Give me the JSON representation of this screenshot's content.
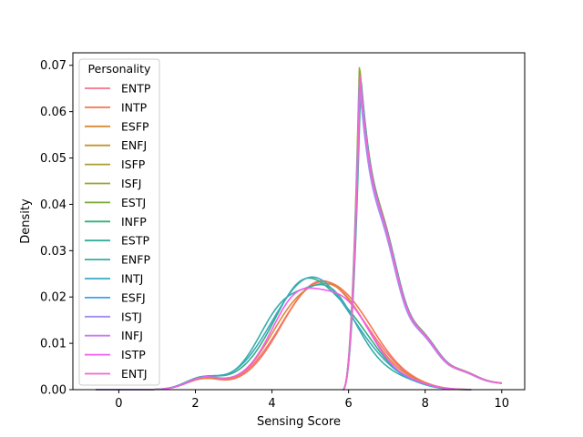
{
  "chart_data": {
    "type": "line",
    "title": "",
    "xlabel": "Sensing Score",
    "ylabel": "Density",
    "xlim": [
      -1.2,
      10.6
    ],
    "ylim": [
      0,
      0.0727
    ],
    "xticks": [
      0,
      2,
      4,
      6,
      8,
      10
    ],
    "yticks": [
      0.0,
      0.01,
      0.02,
      0.03,
      0.04,
      0.05,
      0.06,
      0.07
    ],
    "xtick_labels": [
      "0",
      "2",
      "4",
      "6",
      "8",
      "10"
    ],
    "ytick_labels": [
      "0.00",
      "0.01",
      "0.02",
      "0.03",
      "0.04",
      "0.05",
      "0.06",
      "0.07"
    ],
    "grid": false,
    "legend": {
      "title": "Personality",
      "placement": "upper-left"
    },
    "series": [
      {
        "name": "ENTP",
        "color": "#f77189",
        "group": "low",
        "peak_x": 5.3,
        "peak_y": 0.0235
      },
      {
        "name": "INTP",
        "color": "#f7754f",
        "group": "low",
        "peak_x": 5.35,
        "peak_y": 0.0238
      },
      {
        "name": "ESFP",
        "color": "#dc8932",
        "group": "low",
        "peak_x": 5.25,
        "peak_y": 0.0237
      },
      {
        "name": "ENFJ",
        "color": "#c39532",
        "group": "high",
        "peak_x": 6.3,
        "peak_y": 0.068
      },
      {
        "name": "ISFP",
        "color": "#ae9d31",
        "group": "high",
        "peak_x": 6.3,
        "peak_y": 0.069
      },
      {
        "name": "ISFJ",
        "color": "#97a431",
        "group": "high",
        "peak_x": 6.28,
        "peak_y": 0.0697
      },
      {
        "name": "ESTJ",
        "color": "#77ab31",
        "group": "high",
        "peak_x": 6.3,
        "peak_y": 0.0685
      },
      {
        "name": "INFP",
        "color": "#33b07a",
        "group": "low",
        "peak_x": 5.1,
        "peak_y": 0.0242
      },
      {
        "name": "ESTP",
        "color": "#35ad9c",
        "group": "high",
        "peak_x": 6.32,
        "peak_y": 0.0675
      },
      {
        "name": "ENFP",
        "color": "#36ada4",
        "group": "low",
        "peak_x": 5.0,
        "peak_y": 0.024
      },
      {
        "name": "INTJ",
        "color": "#38a9c5",
        "group": "low",
        "peak_x": 5.05,
        "peak_y": 0.0243
      },
      {
        "name": "ESFJ",
        "color": "#3ba3ec",
        "group": "high",
        "peak_x": 6.3,
        "peak_y": 0.067
      },
      {
        "name": "ISTJ",
        "color": "#a48cf4",
        "group": "high",
        "peak_x": 6.28,
        "peak_y": 0.0665
      },
      {
        "name": "INFJ",
        "color": "#cc7af4",
        "group": "high",
        "peak_x": 6.3,
        "peak_y": 0.0672
      },
      {
        "name": "ISTP",
        "color": "#f45cf2",
        "group": "low",
        "peak_x": 5.2,
        "peak_y": 0.0236
      },
      {
        "name": "ENTJ",
        "color": "#f565cc",
        "group": "high",
        "peak_x": 6.3,
        "peak_y": 0.0678
      }
    ]
  }
}
